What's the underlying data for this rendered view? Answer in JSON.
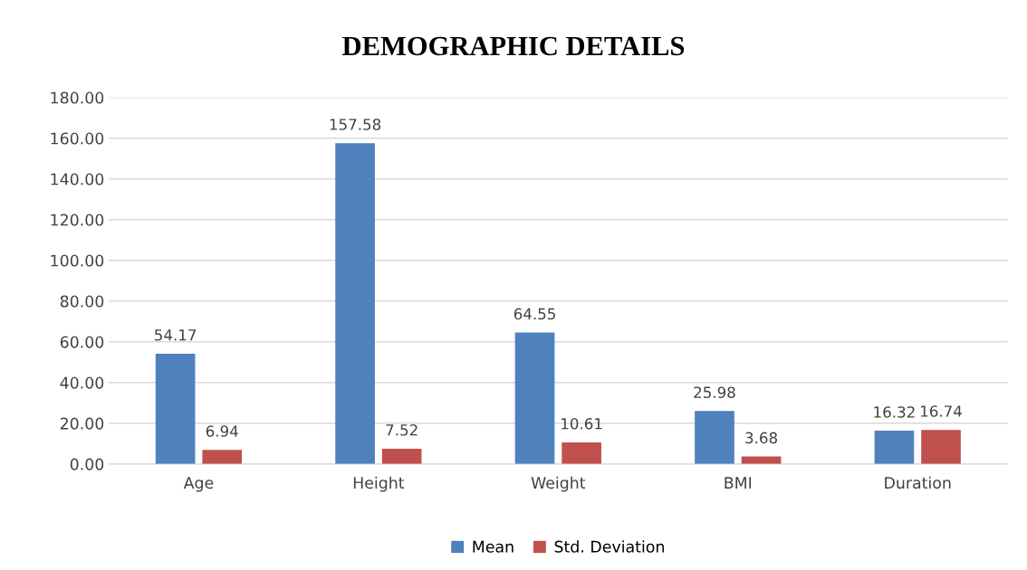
{
  "chart_data": {
    "type": "bar",
    "title": "DEMOGRAPHIC DETAILS",
    "categories": [
      "Age",
      "Height",
      "Weight",
      "BMI",
      "Duration"
    ],
    "series": [
      {
        "name": "Mean",
        "color": "#4f81bd",
        "values": [
          54.17,
          157.58,
          64.55,
          25.98,
          16.32
        ]
      },
      {
        "name": "Std. Deviation",
        "color": "#c0504d",
        "values": [
          6.94,
          7.52,
          10.61,
          3.68,
          16.74
        ]
      }
    ],
    "ylim": [
      0,
      180
    ],
    "yticks": [
      {
        "value": 0,
        "label": "0.00"
      },
      {
        "value": 20,
        "label": "20.00"
      },
      {
        "value": 40,
        "label": "40.00"
      },
      {
        "value": 60,
        "label": "60.00"
      },
      {
        "value": 80,
        "label": "80.00"
      },
      {
        "value": 100,
        "label": "100.00"
      },
      {
        "value": 120,
        "label": "120.00"
      },
      {
        "value": 140,
        "label": "140.00"
      },
      {
        "value": 160,
        "label": "160.00"
      },
      {
        "value": 180,
        "label": "180.00"
      }
    ],
    "grid": "y",
    "legend": "bottom",
    "data_labels": true
  }
}
